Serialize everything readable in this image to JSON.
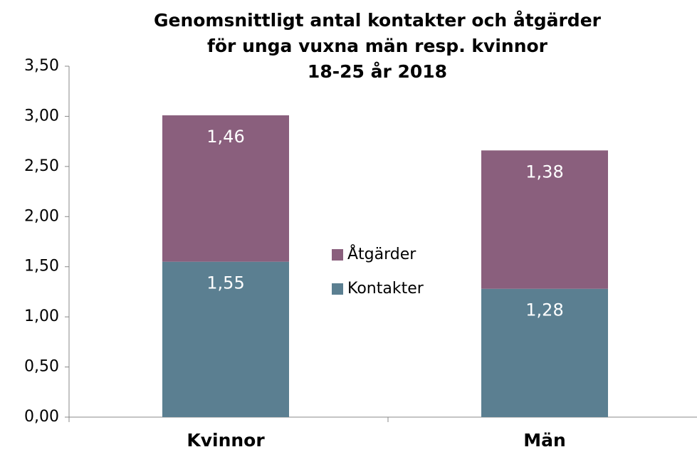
{
  "chart_data": {
    "type": "stacked_bar",
    "title": [
      "Genomsnittligt antal kontakter och åtgärder",
      "för unga vuxna män resp. kvinnor",
      "18-25 år 2018"
    ],
    "categories": [
      "Kvinnor",
      "Män"
    ],
    "series": [
      {
        "name": "Kontakter",
        "color": "#5b7f91",
        "values": [
          1.55,
          1.28
        ],
        "value_labels": [
          "1,55",
          "1,28"
        ]
      },
      {
        "name": "Åtgärder",
        "color": "#8a5f7d",
        "values": [
          1.46,
          1.38
        ],
        "value_labels": [
          "1,46",
          "1,38"
        ]
      }
    ],
    "ylim": [
      0,
      3.5
    ],
    "yticks": [
      {
        "value": 0,
        "label": "0,00"
      },
      {
        "value": 0.5,
        "label": "0,50"
      },
      {
        "value": 1,
        "label": "1,00"
      },
      {
        "value": 1.5,
        "label": "1,50"
      },
      {
        "value": 2,
        "label": "2,00"
      },
      {
        "value": 2.5,
        "label": "2,50"
      },
      {
        "value": 3,
        "label": "3,00"
      },
      {
        "value": 3.5,
        "label": "3,50"
      }
    ],
    "legend": "center"
  }
}
